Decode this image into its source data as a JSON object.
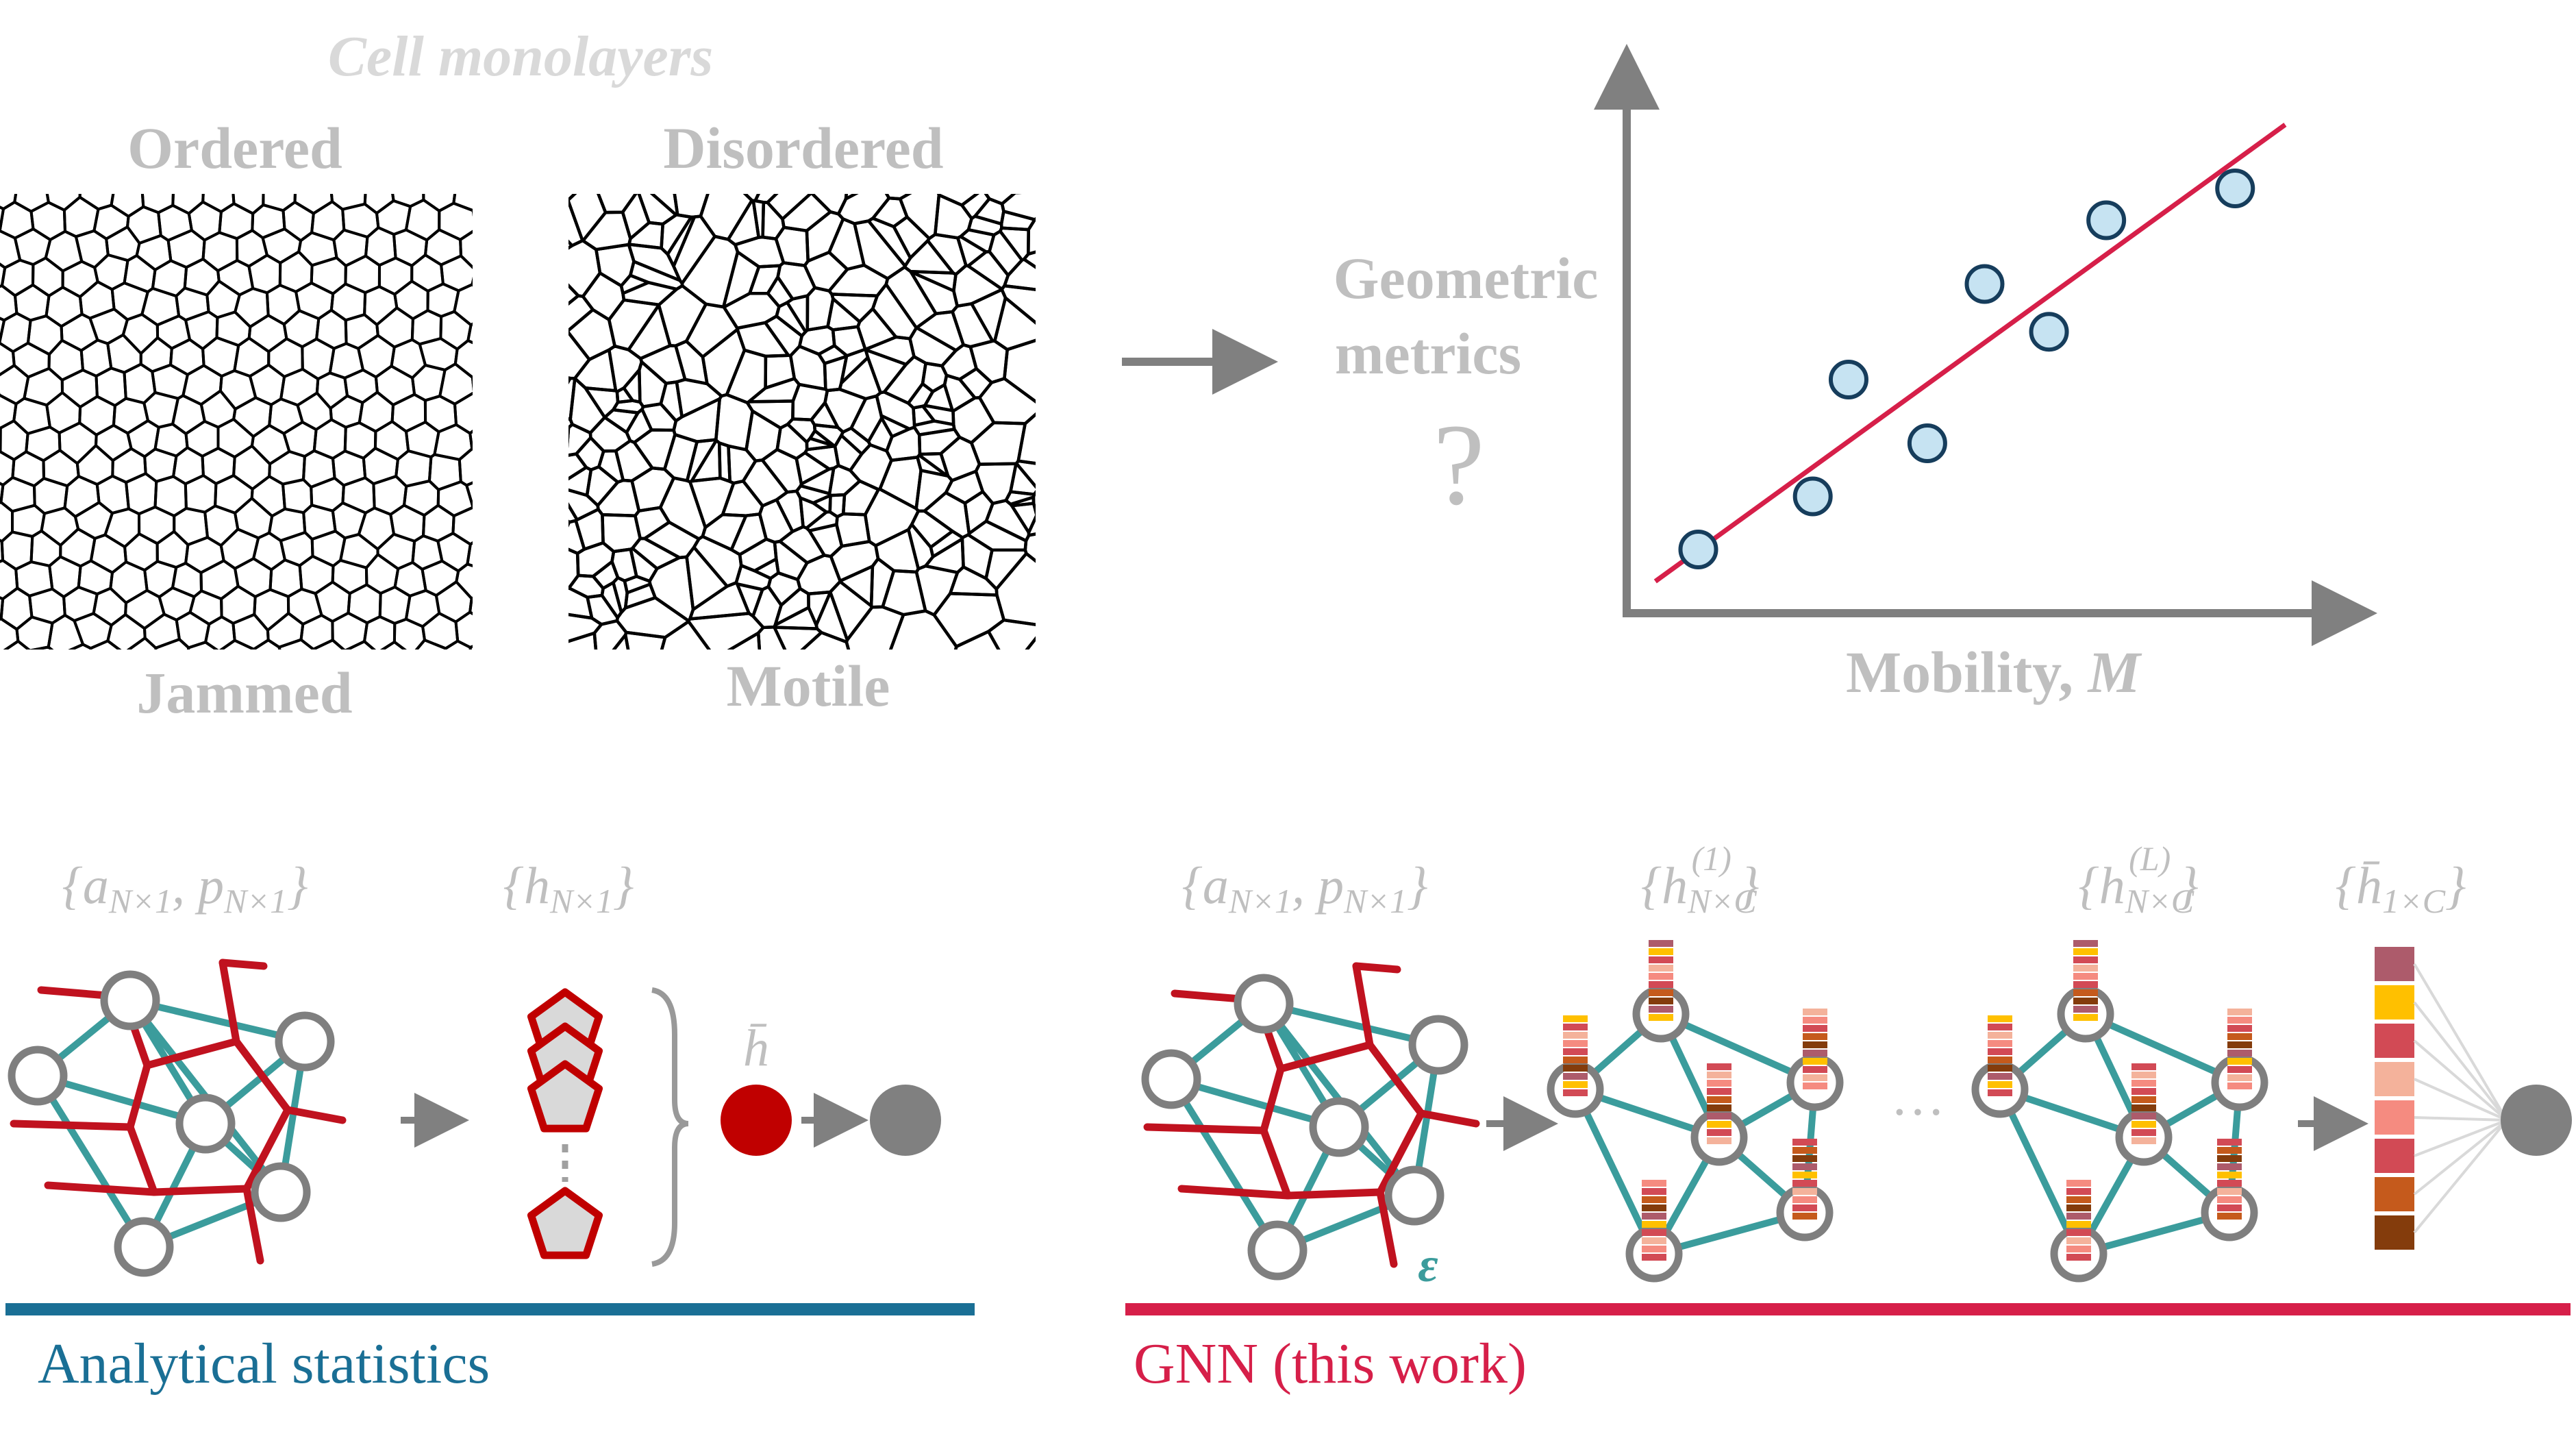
{
  "header": {
    "cell_monolayers": "Cell monolayers",
    "ordered": "Ordered",
    "disordered": "Disordered",
    "jammed": "Jammed",
    "motile": "Motile"
  },
  "middle": {
    "geometric_line1": "Geometric",
    "geometric_line2": "metrics",
    "question_mark": "?"
  },
  "chart": {
    "xlabel_text": "Mobility, ",
    "xlabel_symbol": "M"
  },
  "chart_data": {
    "type": "scatter",
    "title": "",
    "xlabel": "Mobility, M",
    "ylabel": "",
    "points": [
      {
        "x": 0.1,
        "y": 0.12
      },
      {
        "x": 0.26,
        "y": 0.22
      },
      {
        "x": 0.31,
        "y": 0.44
      },
      {
        "x": 0.42,
        "y": 0.32
      },
      {
        "x": 0.5,
        "y": 0.62
      },
      {
        "x": 0.59,
        "y": 0.53
      },
      {
        "x": 0.67,
        "y": 0.74
      },
      {
        "x": 0.85,
        "y": 0.8
      }
    ],
    "fit_line": [
      {
        "x": 0.04,
        "y": 0.06
      },
      {
        "x": 0.92,
        "y": 0.92
      }
    ],
    "xlim": [
      0,
      1
    ],
    "ylim": [
      0,
      1
    ],
    "grid": false,
    "colors": {
      "points_fill": "#c6e3f2",
      "points_edge": "#163d5c",
      "fit_line": "#d61f49",
      "axes": "#7f7f7f"
    }
  },
  "left_pipeline": {
    "input_label": "{a_{N×1}, p_{N×1}}",
    "hidden_label": "{h_{N×1}}",
    "hbar_label": "h̄",
    "section_label": "Analytical statistics",
    "section_color": "#1a6f95"
  },
  "right_pipeline": {
    "input_label": "{a_{N×1}, p_{N×1}}",
    "layer1_label": "{h^{(1)}_{N×C}}",
    "layerL_label": "{h^{(L)}_{N×C}}",
    "pooled_label": "{h̄_{1×C}}",
    "epsilon": "ε",
    "dots": "···",
    "section_label": "GNN (this work)",
    "section_color": "#d61f49"
  },
  "palette": {
    "graph_edge": "#3b9c9c",
    "voronoi": "#c0121f",
    "node_ring": "#7f7f7f",
    "label_gray": "#bfbfbf",
    "arrow_gray": "#808080"
  },
  "feature_vector_colors": [
    "#ad5b6b",
    "#ffc000",
    "#d24a55",
    "#f4b29b",
    "#f58b80",
    "#d24a55",
    "#c55a1c",
    "#843c0c"
  ]
}
